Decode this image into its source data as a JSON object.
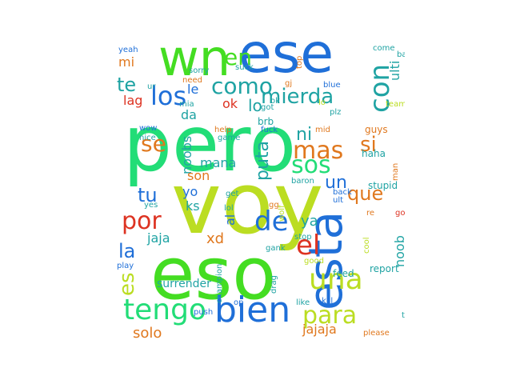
{
  "words": [
    {
      "text": "pero",
      "color": "#22dd77",
      "vertical": false
    },
    {
      "text": "voy",
      "color": "#bbdd22",
      "vertical": false
    },
    {
      "text": "eso",
      "color": "#44dd22",
      "vertical": false
    },
    {
      "text": "ese",
      "color": "#1f6fd8",
      "vertical": false
    },
    {
      "text": "wn",
      "color": "#44dd22",
      "vertical": false
    },
    {
      "text": "esta",
      "color": "#1f6fd8",
      "vertical": true
    },
    {
      "text": "bien",
      "color": "#1f6fd8",
      "vertical": false
    },
    {
      "text": "tengo",
      "color": "#22dd77",
      "vertical": false
    },
    {
      "text": "una",
      "color": "#bbdd22",
      "vertical": false
    },
    {
      "text": "para",
      "color": "#bbdd22",
      "vertical": false
    },
    {
      "text": "mierda",
      "color": "#1fa3a3",
      "vertical": false
    },
    {
      "text": "mas",
      "color": "#e0781e",
      "vertical": false
    },
    {
      "text": "como",
      "color": "#1fa3a3",
      "vertical": false
    },
    {
      "text": "los",
      "color": "#1f6fd8",
      "vertical": false
    },
    {
      "text": "con",
      "color": "#1fa3a3",
      "vertical": true
    },
    {
      "text": "sos",
      "color": "#22dd77",
      "vertical": false
    },
    {
      "text": "por",
      "color": "#dd3322",
      "vertical": false
    },
    {
      "text": "de",
      "color": "#1f6fd8",
      "vertical": false
    },
    {
      "text": "el",
      "color": "#dd3322",
      "vertical": false
    },
    {
      "text": "que",
      "color": "#e0781e",
      "vertical": false
    },
    {
      "text": "si",
      "color": "#e0781e",
      "vertical": false
    },
    {
      "text": "se",
      "color": "#e0781e",
      "vertical": false
    },
    {
      "text": "en",
      "color": "#44dd22",
      "vertical": false
    },
    {
      "text": "te",
      "color": "#1fa3a3",
      "vertical": false
    },
    {
      "text": "tu",
      "color": "#1f6fd8",
      "vertical": false
    },
    {
      "text": "la",
      "color": "#1f6fd8",
      "vertical": false
    },
    {
      "text": "es",
      "color": "#bbdd22",
      "vertical": true
    },
    {
      "text": "un",
      "color": "#1f6fd8",
      "vertical": false
    },
    {
      "text": "ni",
      "color": "#1fa3a3",
      "vertical": false
    },
    {
      "text": "puta",
      "color": "#1fa3a3",
      "vertical": true
    },
    {
      "text": "lo",
      "color": "#1fa3a3",
      "vertical": false
    },
    {
      "text": "le",
      "color": "#1f6fd8",
      "vertical": false
    },
    {
      "text": "mi",
      "color": "#e0781e",
      "vertical": false
    },
    {
      "text": "lag",
      "color": "#dd3322",
      "vertical": false
    },
    {
      "text": "ok",
      "color": "#dd3322",
      "vertical": false
    },
    {
      "text": "da",
      "color": "#1fa3a3",
      "vertical": false
    },
    {
      "text": "ulti",
      "color": "#1fa3a3",
      "vertical": true
    },
    {
      "text": "noobs",
      "color": "#1fa3a3",
      "vertical": true
    },
    {
      "text": "mana",
      "color": "#1fa3a3",
      "vertical": false
    },
    {
      "text": "son",
      "color": "#e0781e",
      "vertical": false
    },
    {
      "text": "yo",
      "color": "#1f6fd8",
      "vertical": false
    },
    {
      "text": "ks",
      "color": "#1fa3a3",
      "vertical": false
    },
    {
      "text": "al",
      "color": "#1f6fd8",
      "vertical": true
    },
    {
      "text": "jaja",
      "color": "#1fa3a3",
      "vertical": false
    },
    {
      "text": "xd",
      "color": "#e0781e",
      "vertical": false
    },
    {
      "text": "ya",
      "color": "#1fa3a3",
      "vertical": false
    },
    {
      "text": "noob",
      "color": "#1fa3a3",
      "vertical": true
    },
    {
      "text": "surrender",
      "color": "#1fa3a3",
      "vertical": false
    },
    {
      "text": "solo",
      "color": "#e0781e",
      "vertical": false
    },
    {
      "text": "jajaja",
      "color": "#e0781e",
      "vertical": false
    },
    {
      "text": "brb",
      "color": "#1fa3a3",
      "vertical": false
    },
    {
      "text": "report",
      "color": "#1fa3a3",
      "vertical": false
    },
    {
      "text": "feed",
      "color": "#1fa3a3",
      "vertical": false
    },
    {
      "text": "kill",
      "color": "#1f6fd8",
      "vertical": false
    },
    {
      "text": "haha",
      "color": "#1fa3a3",
      "vertical": false
    },
    {
      "text": "stupid",
      "color": "#1fa3a3",
      "vertical": false
    },
    {
      "text": "guys",
      "color": "#e0781e",
      "vertical": false
    },
    {
      "text": "yeah",
      "color": "#1f6fd8",
      "vertical": false
    },
    {
      "text": "sorry",
      "color": "#1fa3a3",
      "vertical": false
    },
    {
      "text": "need",
      "color": "#e0781e",
      "vertical": false
    },
    {
      "text": "mia",
      "color": "#1fa3a3",
      "vertical": false
    },
    {
      "text": "suck",
      "color": "#1fa3a3",
      "vertical": false
    },
    {
      "text": "top",
      "color": "#e0781e",
      "vertical": true
    },
    {
      "text": "gj",
      "color": "#e0781e",
      "vertical": false
    },
    {
      "text": "blue",
      "color": "#1f6fd8",
      "vertical": false
    },
    {
      "text": "got",
      "color": "#1fa3a3",
      "vertical": false
    },
    {
      "text": "plz",
      "color": "#1fa3a3",
      "vertical": false
    },
    {
      "text": "mid",
      "color": "#e0781e",
      "vertical": false
    },
    {
      "text": "come",
      "color": "#1fa3a3",
      "vertical": false
    },
    {
      "text": "bad",
      "color": "#1fa3a3",
      "vertical": false
    },
    {
      "text": "team",
      "color": "#bbdd22",
      "vertical": false
    },
    {
      "text": "wow",
      "color": "#1f6fd8",
      "vertical": false
    },
    {
      "text": "nice",
      "color": "#1fa3a3",
      "vertical": false
    },
    {
      "text": "help",
      "color": "#e0781e",
      "vertical": false
    },
    {
      "text": "fuck",
      "color": "#1f6fd8",
      "vertical": false
    },
    {
      "text": "game",
      "color": "#1fa3a3",
      "vertical": false
    },
    {
      "text": "baron",
      "color": "#1fa3a3",
      "vertical": false
    },
    {
      "text": "back",
      "color": "#1f6fd8",
      "vertical": false
    },
    {
      "text": "ult",
      "color": "#1f6fd8",
      "vertical": false
    },
    {
      "text": "man",
      "color": "#e0781e",
      "vertical": true
    },
    {
      "text": "get",
      "color": "#1fa3a3",
      "vertical": false
    },
    {
      "text": "yes",
      "color": "#1fa3a3",
      "vertical": false
    },
    {
      "text": "lol",
      "color": "#1fa3a3",
      "vertical": false
    },
    {
      "text": "gg",
      "color": "#e0781e",
      "vertical": false
    },
    {
      "text": "re",
      "color": "#e0781e",
      "vertical": false
    },
    {
      "text": "go",
      "color": "#dd3322",
      "vertical": false
    },
    {
      "text": "wolf",
      "color": "#bbdd22",
      "vertical": true
    },
    {
      "text": "stop",
      "color": "#1fa3a3",
      "vertical": false
    },
    {
      "text": "play",
      "color": "#1f6fd8",
      "vertical": false
    },
    {
      "text": "gank",
      "color": "#1fa3a3",
      "vertical": false
    },
    {
      "text": "good",
      "color": "#bbdd22",
      "vertical": false
    },
    {
      "text": "champion",
      "color": "#1fa3a3",
      "vertical": true
    },
    {
      "text": "drag",
      "color": "#1fa3a3",
      "vertical": true
    },
    {
      "text": "op",
      "color": "#1f6fd8",
      "vertical": false
    },
    {
      "text": "like",
      "color": "#1fa3a3",
      "vertical": false
    },
    {
      "text": "ty",
      "color": "#1fa3a3",
      "vertical": false
    },
    {
      "text": "push",
      "color": "#1f6fd8",
      "vertical": false
    },
    {
      "text": "please",
      "color": "#e0781e",
      "vertical": false
    },
    {
      "text": "ur",
      "color": "#1fa3a3",
      "vertical": false
    },
    {
      "text": "lo",
      "color": "#bbdd22",
      "vertical": false
    },
    {
      "text": "ok",
      "color": "#1fa3a3",
      "vertical": false
    },
    {
      "text": "cool",
      "color": "#bbdd22",
      "vertical": true
    }
  ]
}
